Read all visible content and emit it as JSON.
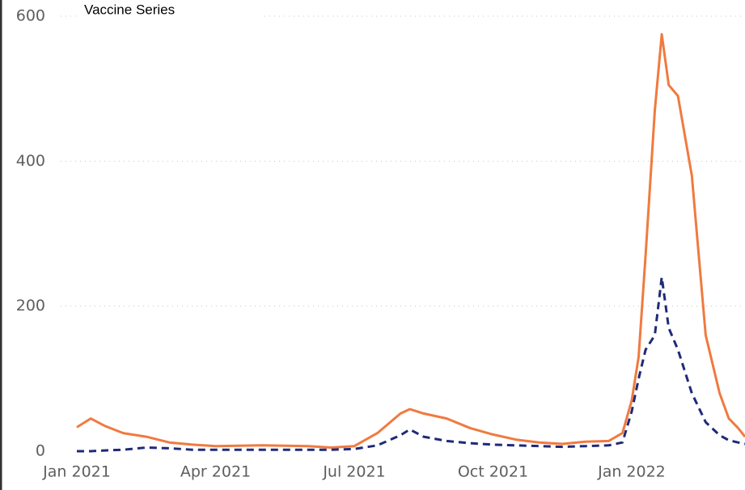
{
  "chart_data": {
    "type": "line",
    "title": "Vaccine Series",
    "x": [
      0,
      0.3,
      0.6,
      1,
      1.5,
      2,
      2.5,
      3,
      4,
      5,
      5.5,
      6,
      6.5,
      7,
      7.2,
      7.5,
      8,
      8.5,
      9,
      9.5,
      10,
      10.5,
      11,
      11.5,
      11.8,
      12,
      12.15,
      12.3,
      12.5,
      12.65,
      12.8,
      13,
      13.3,
      13.6,
      13.9,
      14.1,
      14.3,
      14.45
    ],
    "series": [
      {
        "color": "#f07a3f",
        "dash": false,
        "values": [
          33,
          45,
          35,
          25,
          20,
          12,
          9,
          7,
          8,
          7,
          5,
          7,
          25,
          52,
          58,
          52,
          45,
          32,
          23,
          16,
          12,
          10,
          13,
          14,
          25,
          70,
          130,
          270,
          470,
          575,
          505,
          490,
          380,
          160,
          80,
          45,
          32,
          20
        ]
      },
      {
        "color": "#1e2a78",
        "dash": true,
        "values": [
          0,
          0,
          1,
          2,
          5,
          4,
          2,
          2,
          2,
          2,
          2,
          3,
          8,
          22,
          30,
          20,
          14,
          11,
          9,
          8,
          7,
          6,
          7,
          8,
          12,
          55,
          100,
          140,
          160,
          240,
          170,
          140,
          80,
          40,
          22,
          15,
          12,
          10
        ]
      }
    ],
    "xlim": [
      -0.35,
      14.45
    ],
    "xticks": [
      {
        "value": 0,
        "label": "Jan 2021"
      },
      {
        "value": 3,
        "label": "Apr 2021"
      },
      {
        "value": 6,
        "label": "Jul 2021"
      },
      {
        "value": 9,
        "label": "Oct 2021"
      },
      {
        "value": 12,
        "label": "Jan 2022"
      }
    ],
    "ylim": [
      0,
      600
    ],
    "yticks": [
      0,
      200,
      400,
      600
    ],
    "grid": true
  }
}
